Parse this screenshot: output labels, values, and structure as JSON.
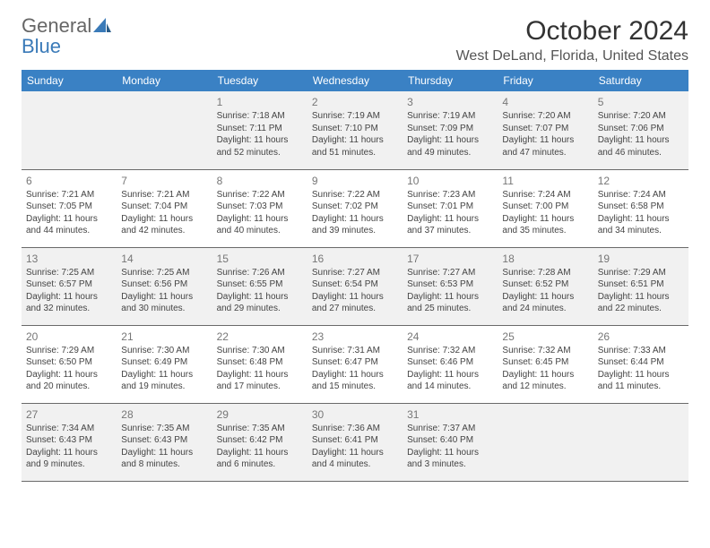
{
  "brand": {
    "part1": "General",
    "part2": "Blue"
  },
  "title": "October 2024",
  "location": "West DeLand, Florida, United States",
  "colors": {
    "header_bg": "#3a81c4",
    "header_text": "#ffffff",
    "alt_row_bg": "#f1f1f1",
    "border": "#6a6a6a",
    "logo_blue": "#3a7ab8",
    "body_text": "#444444",
    "daynum": "#777777"
  },
  "typography": {
    "month_title_size": 30,
    "location_size": 16,
    "day_header_size": 12,
    "cell_size": 10,
    "daynum_size": 12
  },
  "day_headers": [
    "Sunday",
    "Monday",
    "Tuesday",
    "Wednesday",
    "Thursday",
    "Friday",
    "Saturday"
  ],
  "weeks": [
    [
      null,
      null,
      {
        "n": "1",
        "sr": "Sunrise: 7:18 AM",
        "ss": "Sunset: 7:11 PM",
        "d1": "Daylight: 11 hours",
        "d2": "and 52 minutes."
      },
      {
        "n": "2",
        "sr": "Sunrise: 7:19 AM",
        "ss": "Sunset: 7:10 PM",
        "d1": "Daylight: 11 hours",
        "d2": "and 51 minutes."
      },
      {
        "n": "3",
        "sr": "Sunrise: 7:19 AM",
        "ss": "Sunset: 7:09 PM",
        "d1": "Daylight: 11 hours",
        "d2": "and 49 minutes."
      },
      {
        "n": "4",
        "sr": "Sunrise: 7:20 AM",
        "ss": "Sunset: 7:07 PM",
        "d1": "Daylight: 11 hours",
        "d2": "and 47 minutes."
      },
      {
        "n": "5",
        "sr": "Sunrise: 7:20 AM",
        "ss": "Sunset: 7:06 PM",
        "d1": "Daylight: 11 hours",
        "d2": "and 46 minutes."
      }
    ],
    [
      {
        "n": "6",
        "sr": "Sunrise: 7:21 AM",
        "ss": "Sunset: 7:05 PM",
        "d1": "Daylight: 11 hours",
        "d2": "and 44 minutes."
      },
      {
        "n": "7",
        "sr": "Sunrise: 7:21 AM",
        "ss": "Sunset: 7:04 PM",
        "d1": "Daylight: 11 hours",
        "d2": "and 42 minutes."
      },
      {
        "n": "8",
        "sr": "Sunrise: 7:22 AM",
        "ss": "Sunset: 7:03 PM",
        "d1": "Daylight: 11 hours",
        "d2": "and 40 minutes."
      },
      {
        "n": "9",
        "sr": "Sunrise: 7:22 AM",
        "ss": "Sunset: 7:02 PM",
        "d1": "Daylight: 11 hours",
        "d2": "and 39 minutes."
      },
      {
        "n": "10",
        "sr": "Sunrise: 7:23 AM",
        "ss": "Sunset: 7:01 PM",
        "d1": "Daylight: 11 hours",
        "d2": "and 37 minutes."
      },
      {
        "n": "11",
        "sr": "Sunrise: 7:24 AM",
        "ss": "Sunset: 7:00 PM",
        "d1": "Daylight: 11 hours",
        "d2": "and 35 minutes."
      },
      {
        "n": "12",
        "sr": "Sunrise: 7:24 AM",
        "ss": "Sunset: 6:58 PM",
        "d1": "Daylight: 11 hours",
        "d2": "and 34 minutes."
      }
    ],
    [
      {
        "n": "13",
        "sr": "Sunrise: 7:25 AM",
        "ss": "Sunset: 6:57 PM",
        "d1": "Daylight: 11 hours",
        "d2": "and 32 minutes."
      },
      {
        "n": "14",
        "sr": "Sunrise: 7:25 AM",
        "ss": "Sunset: 6:56 PM",
        "d1": "Daylight: 11 hours",
        "d2": "and 30 minutes."
      },
      {
        "n": "15",
        "sr": "Sunrise: 7:26 AM",
        "ss": "Sunset: 6:55 PM",
        "d1": "Daylight: 11 hours",
        "d2": "and 29 minutes."
      },
      {
        "n": "16",
        "sr": "Sunrise: 7:27 AM",
        "ss": "Sunset: 6:54 PM",
        "d1": "Daylight: 11 hours",
        "d2": "and 27 minutes."
      },
      {
        "n": "17",
        "sr": "Sunrise: 7:27 AM",
        "ss": "Sunset: 6:53 PM",
        "d1": "Daylight: 11 hours",
        "d2": "and 25 minutes."
      },
      {
        "n": "18",
        "sr": "Sunrise: 7:28 AM",
        "ss": "Sunset: 6:52 PM",
        "d1": "Daylight: 11 hours",
        "d2": "and 24 minutes."
      },
      {
        "n": "19",
        "sr": "Sunrise: 7:29 AM",
        "ss": "Sunset: 6:51 PM",
        "d1": "Daylight: 11 hours",
        "d2": "and 22 minutes."
      }
    ],
    [
      {
        "n": "20",
        "sr": "Sunrise: 7:29 AM",
        "ss": "Sunset: 6:50 PM",
        "d1": "Daylight: 11 hours",
        "d2": "and 20 minutes."
      },
      {
        "n": "21",
        "sr": "Sunrise: 7:30 AM",
        "ss": "Sunset: 6:49 PM",
        "d1": "Daylight: 11 hours",
        "d2": "and 19 minutes."
      },
      {
        "n": "22",
        "sr": "Sunrise: 7:30 AM",
        "ss": "Sunset: 6:48 PM",
        "d1": "Daylight: 11 hours",
        "d2": "and 17 minutes."
      },
      {
        "n": "23",
        "sr": "Sunrise: 7:31 AM",
        "ss": "Sunset: 6:47 PM",
        "d1": "Daylight: 11 hours",
        "d2": "and 15 minutes."
      },
      {
        "n": "24",
        "sr": "Sunrise: 7:32 AM",
        "ss": "Sunset: 6:46 PM",
        "d1": "Daylight: 11 hours",
        "d2": "and 14 minutes."
      },
      {
        "n": "25",
        "sr": "Sunrise: 7:32 AM",
        "ss": "Sunset: 6:45 PM",
        "d1": "Daylight: 11 hours",
        "d2": "and 12 minutes."
      },
      {
        "n": "26",
        "sr": "Sunrise: 7:33 AM",
        "ss": "Sunset: 6:44 PM",
        "d1": "Daylight: 11 hours",
        "d2": "and 11 minutes."
      }
    ],
    [
      {
        "n": "27",
        "sr": "Sunrise: 7:34 AM",
        "ss": "Sunset: 6:43 PM",
        "d1": "Daylight: 11 hours",
        "d2": "and 9 minutes."
      },
      {
        "n": "28",
        "sr": "Sunrise: 7:35 AM",
        "ss": "Sunset: 6:43 PM",
        "d1": "Daylight: 11 hours",
        "d2": "and 8 minutes."
      },
      {
        "n": "29",
        "sr": "Sunrise: 7:35 AM",
        "ss": "Sunset: 6:42 PM",
        "d1": "Daylight: 11 hours",
        "d2": "and 6 minutes."
      },
      {
        "n": "30",
        "sr": "Sunrise: 7:36 AM",
        "ss": "Sunset: 6:41 PM",
        "d1": "Daylight: 11 hours",
        "d2": "and 4 minutes."
      },
      {
        "n": "31",
        "sr": "Sunrise: 7:37 AM",
        "ss": "Sunset: 6:40 PM",
        "d1": "Daylight: 11 hours",
        "d2": "and 3 minutes."
      },
      null,
      null
    ]
  ]
}
